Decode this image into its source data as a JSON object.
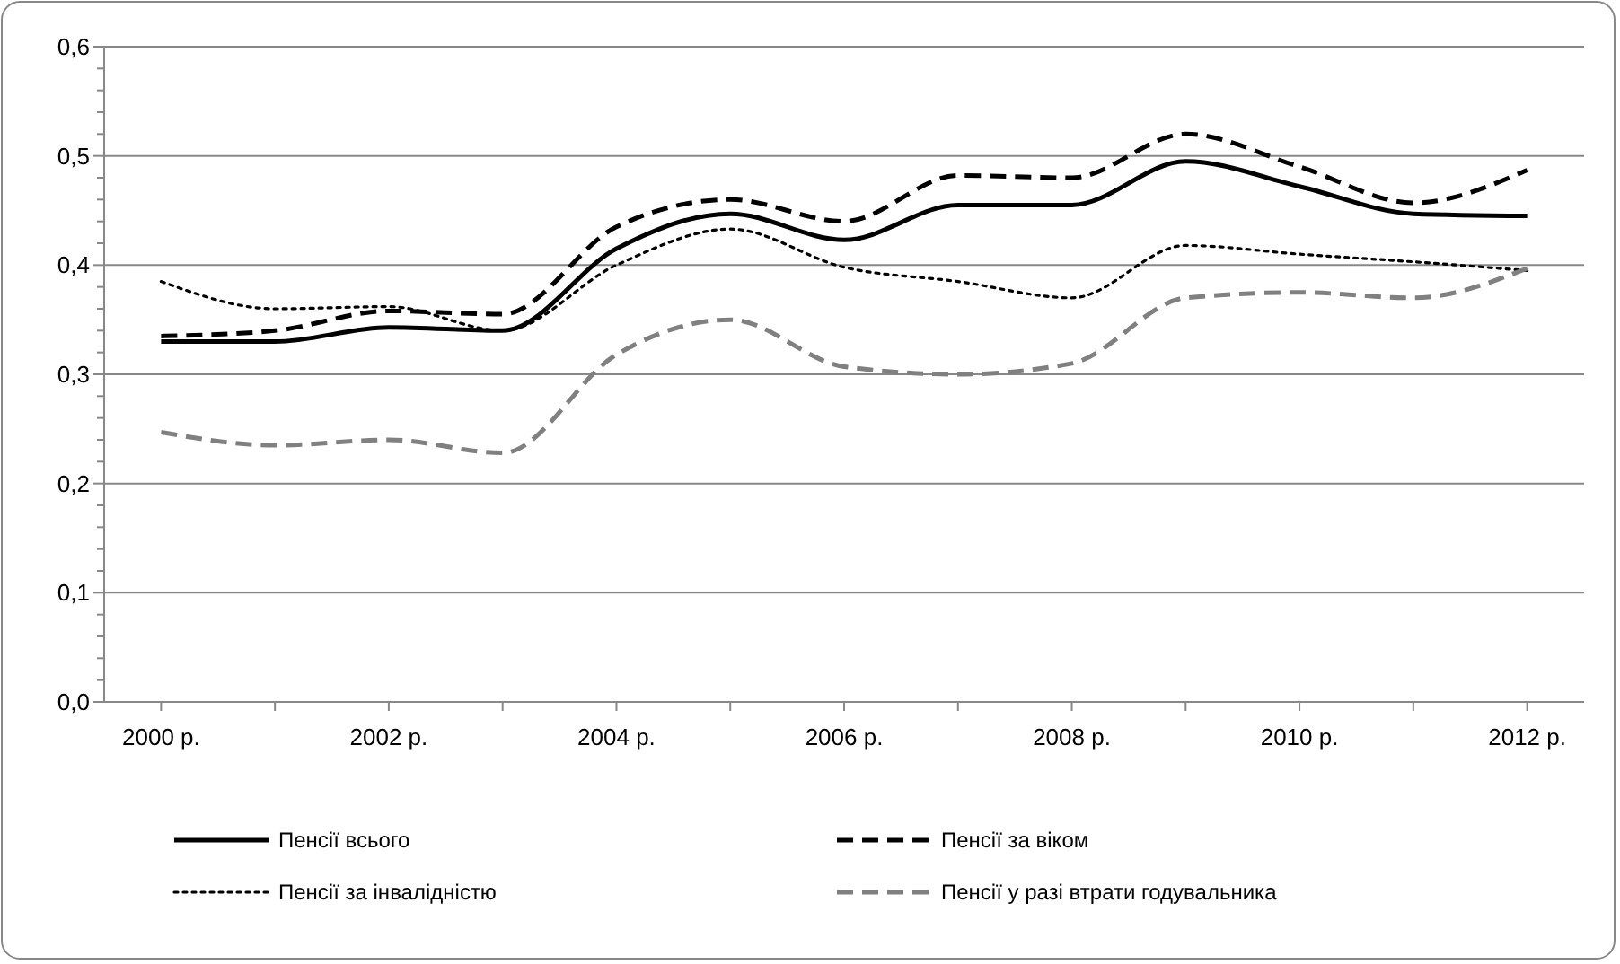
{
  "chart_data": {
    "type": "line",
    "categories": [
      "2000 р.",
      null,
      "2002 р.",
      null,
      "2004 р.",
      null,
      "2006 р.",
      null,
      "2008 р.",
      null,
      "2010 р.",
      null,
      "2012 р."
    ],
    "series": [
      {
        "name": "Пенсії всього",
        "color": "#000000",
        "line_style": "solid",
        "values": [
          0.33,
          0.33,
          0.343,
          0.34,
          0.415,
          0.447,
          0.423,
          0.455,
          0.455,
          0.495,
          0.472,
          0.447,
          0.445
        ]
      },
      {
        "name": "Пенсії за віком",
        "color": "#000000",
        "line_style": "dashed",
        "values": [
          0.335,
          0.34,
          0.358,
          0.355,
          0.435,
          0.46,
          0.44,
          0.482,
          0.48,
          0.52,
          0.49,
          0.457,
          0.487
        ]
      },
      {
        "name": "Пенсії за інвалідністю",
        "color": "#000000",
        "line_style": "dotted",
        "values": [
          0.385,
          0.36,
          0.362,
          0.34,
          0.4,
          0.433,
          0.398,
          0.385,
          0.37,
          0.418,
          0.41,
          0.403,
          0.395
        ]
      },
      {
        "name": "Пенсії у разі втрати годувальника",
        "color": "#808080",
        "line_style": "dashed",
        "values": [
          0.247,
          0.235,
          0.24,
          0.228,
          0.318,
          0.35,
          0.307,
          0.3,
          0.31,
          0.37,
          0.375,
          0.37,
          0.397
        ]
      }
    ],
    "ylim": [
      0,
      0.6
    ],
    "yticks": [
      {
        "value": 0,
        "label": "0,0"
      },
      {
        "value": 0.1,
        "label": "0,1"
      },
      {
        "value": 0.2,
        "label": "0,2"
      },
      {
        "value": 0.3,
        "label": "0,3"
      },
      {
        "value": 0.4,
        "label": "0,4"
      },
      {
        "value": 0.5,
        "label": "0,5"
      },
      {
        "value": 0.6,
        "label": "0,6"
      }
    ],
    "grid": "y",
    "legend": "bottom"
  }
}
